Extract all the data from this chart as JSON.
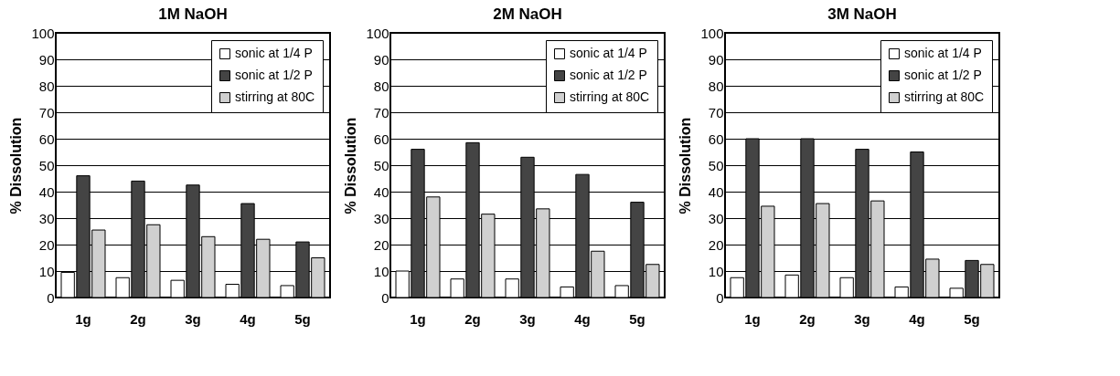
{
  "chart_data": [
    {
      "type": "bar",
      "title": "1M NaOH",
      "ylabel": "% Dissolution",
      "categories": [
        "1g",
        "2g",
        "3g",
        "4g",
        "5g"
      ],
      "series": [
        {
          "name": "sonic at 1/4 P",
          "color": "#ffffff",
          "values": [
            9.5,
            7.5,
            6.5,
            5,
            4.5
          ]
        },
        {
          "name": "sonic at 1/2 P",
          "color": "#444444",
          "values": [
            46,
            44,
            42.5,
            35.5,
            21
          ]
        },
        {
          "name": "stirring at 80C",
          "color": "#d0d0d0",
          "values": [
            25.5,
            27.5,
            23,
            22,
            15
          ]
        }
      ],
      "ylim": [
        0,
        100
      ],
      "yticks": [
        0,
        10,
        20,
        30,
        40,
        50,
        60,
        70,
        80,
        90,
        100
      ],
      "grid": "y",
      "legend": "top right"
    },
    {
      "type": "bar",
      "title": "2M NaOH",
      "ylabel": "% Dissolution",
      "categories": [
        "1g",
        "2g",
        "3g",
        "4g",
        "5g"
      ],
      "series": [
        {
          "name": "sonic at 1/4 P",
          "color": "#ffffff",
          "values": [
            10,
            7,
            7,
            4,
            4.5
          ]
        },
        {
          "name": "sonic at 1/2 P",
          "color": "#444444",
          "values": [
            56,
            58.5,
            53,
            46.5,
            36
          ]
        },
        {
          "name": "stirring at 80C",
          "color": "#d0d0d0",
          "values": [
            38,
            31.5,
            33.5,
            17.5,
            12.5
          ]
        }
      ],
      "ylim": [
        0,
        100
      ],
      "yticks": [
        0,
        10,
        20,
        30,
        40,
        50,
        60,
        70,
        80,
        90,
        100
      ],
      "grid": "y",
      "legend": "top right"
    },
    {
      "type": "bar",
      "title": "3M NaOH",
      "ylabel": "% Dissolution",
      "categories": [
        "1g",
        "2g",
        "3g",
        "4g",
        "5g"
      ],
      "series": [
        {
          "name": "sonic at 1/4 P",
          "color": "#ffffff",
          "values": [
            7.5,
            8.5,
            7.5,
            4,
            3.5
          ]
        },
        {
          "name": "sonic at 1/2 P",
          "color": "#444444",
          "values": [
            60,
            60,
            56,
            55,
            14
          ]
        },
        {
          "name": "stirring at 80C",
          "color": "#d0d0d0",
          "values": [
            34.5,
            35.5,
            36.5,
            14.5,
            12.5
          ]
        }
      ],
      "ylim": [
        0,
        100
      ],
      "yticks": [
        0,
        10,
        20,
        30,
        40,
        50,
        60,
        70,
        80,
        90,
        100
      ],
      "grid": "y",
      "legend": "top right"
    }
  ]
}
